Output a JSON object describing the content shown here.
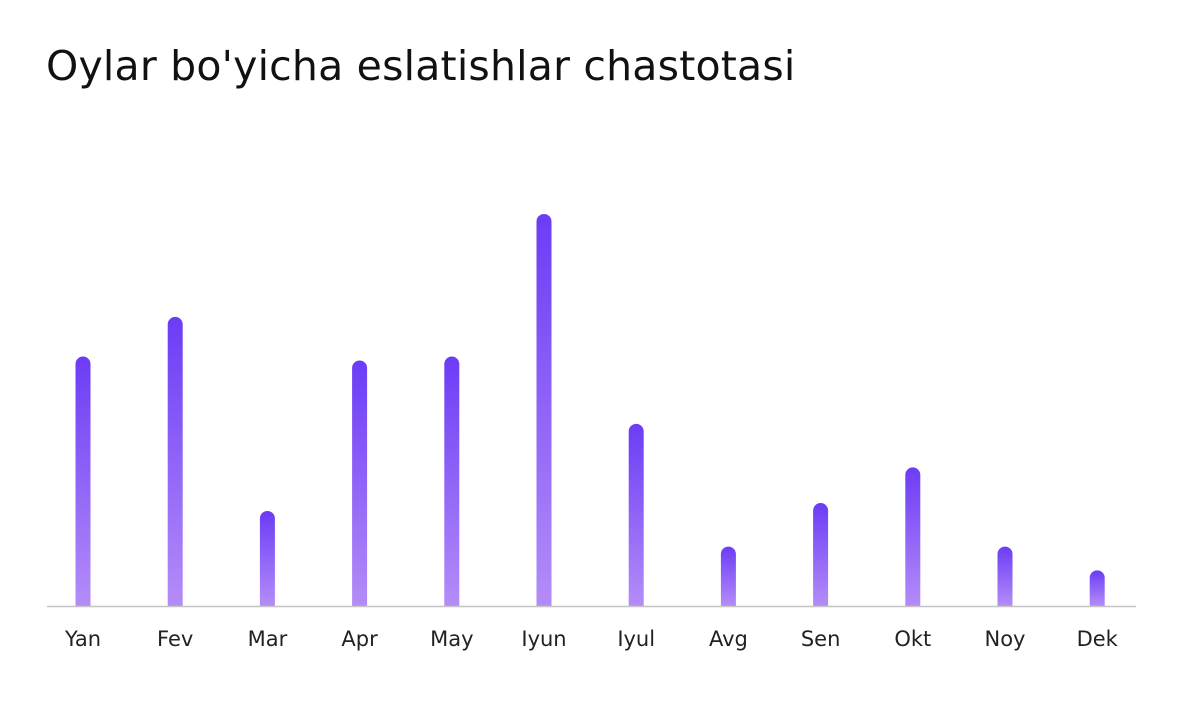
{
  "chart_data": {
    "type": "bar",
    "title": "Oylar bo'yicha eslatishlar chastotasi",
    "xlabel": "",
    "ylabel": "",
    "categories": [
      "Yan",
      "Fev",
      "Mar",
      "Apr",
      "May",
      "Iyun",
      "Iyul",
      "Avg",
      "Sen",
      "Okt",
      "Noy",
      "Dek"
    ],
    "values": [
      63,
      73,
      24,
      62,
      63,
      99,
      46,
      15,
      26,
      35,
      15,
      9
    ],
    "ylim": [
      0,
      100
    ],
    "grid": false,
    "legend": "none",
    "colors": {
      "bar_top": "#6b3cf6",
      "bar_bottom": "#b48cf8",
      "axis": "#c4c4c4",
      "text": "#111111"
    }
  }
}
